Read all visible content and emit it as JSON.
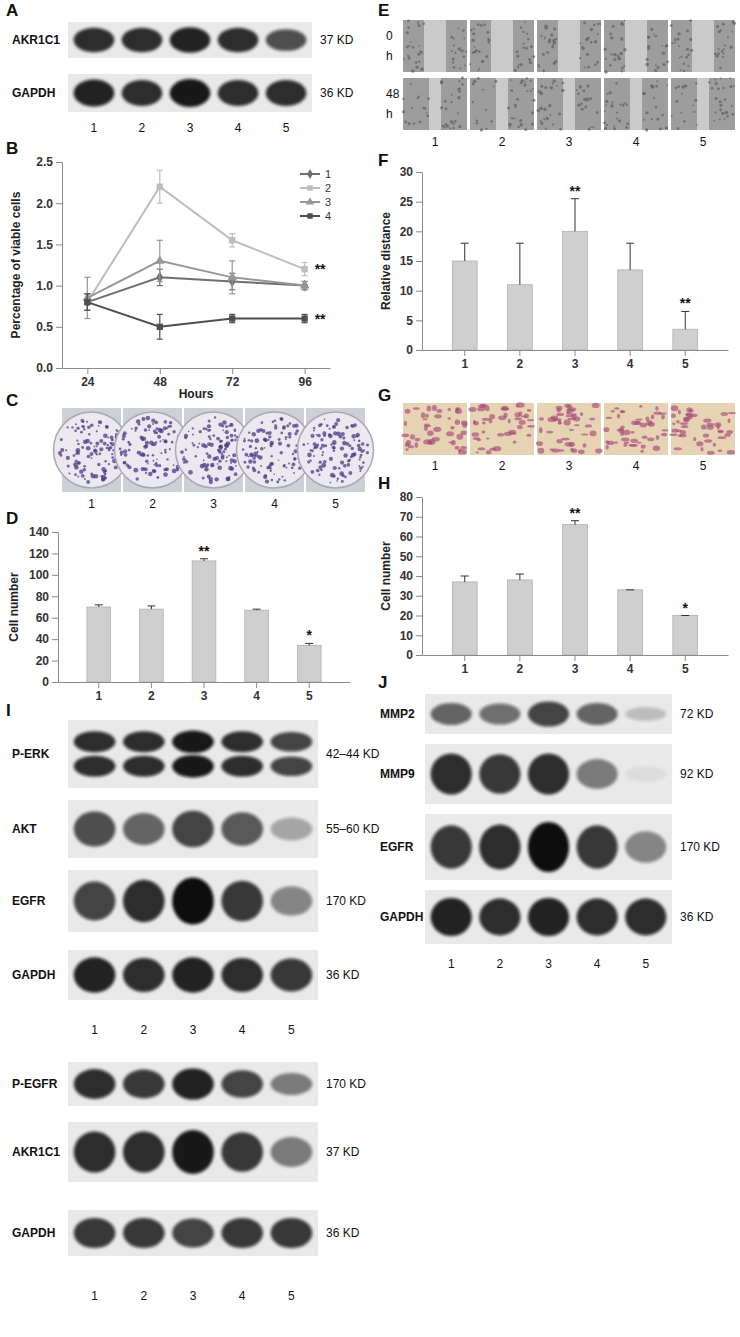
{
  "panels": [
    "A",
    "B",
    "C",
    "D",
    "E",
    "F",
    "G",
    "H",
    "I",
    "J"
  ],
  "lanes": [
    "1",
    "2",
    "3",
    "4",
    "5"
  ],
  "wound_rows": [
    [
      "0",
      "h"
    ],
    [
      "48",
      "h"
    ]
  ],
  "blots": [
    [
      [
        {
          "name": "AKR1C1",
          "size": "37 KD",
          "intensity": [
            0.85,
            0.85,
            0.9,
            0.85,
            0.7
          ]
        },
        {
          "name": "GAPDH",
          "size": "36 KD",
          "intensity": [
            0.9,
            0.85,
            0.95,
            0.85,
            0.85
          ]
        }
      ]
    ],
    [
      [
        {
          "name": "P-ERK",
          "size": "42–44 KD",
          "bands": 2,
          "intensity": [
            0.85,
            0.85,
            0.95,
            0.85,
            0.75
          ]
        },
        {
          "name": "AKT",
          "size": "55–60 KD",
          "intensity": [
            0.7,
            0.6,
            0.75,
            0.65,
            0.3
          ]
        },
        {
          "name": "EGFR",
          "size": "170 KD",
          "intensity": [
            0.75,
            0.85,
            1.0,
            0.8,
            0.45
          ]
        },
        {
          "name": "GAPDH",
          "size": "36 KD",
          "intensity": [
            0.9,
            0.85,
            0.9,
            0.85,
            0.8
          ]
        }
      ],
      [
        {
          "name": "P-EGFR",
          "size": "170 KD",
          "intensity": [
            0.85,
            0.8,
            0.9,
            0.75,
            0.5
          ]
        },
        {
          "name": "AKR1C1",
          "size": "37 KD",
          "intensity": [
            0.85,
            0.85,
            0.95,
            0.8,
            0.5
          ]
        },
        {
          "name": "GAPDH",
          "size": "36 KD",
          "intensity": [
            0.8,
            0.8,
            0.75,
            0.8,
            0.8
          ]
        }
      ]
    ],
    [
      [
        {
          "name": "MMP2",
          "size": "72 KD",
          "intensity": [
            0.6,
            0.55,
            0.75,
            0.6,
            0.2
          ]
        },
        {
          "name": "MMP9",
          "size": "92 KD",
          "intensity": [
            0.85,
            0.8,
            0.85,
            0.5,
            0.05
          ]
        },
        {
          "name": "EGFR",
          "size": "170 KD",
          "intensity": [
            0.8,
            0.85,
            1.0,
            0.8,
            0.45
          ]
        },
        {
          "name": "GAPDH",
          "size": "36 KD",
          "intensity": [
            0.9,
            0.85,
            0.9,
            0.85,
            0.85
          ]
        }
      ]
    ]
  ],
  "chart_data": [
    {
      "type": "line",
      "x_label": "Hours",
      "y_label": "Percentage of viable cells",
      "categories": [
        "24",
        "48",
        "72",
        "96"
      ],
      "ylim": [
        0,
        2.5
      ],
      "yticks": [
        {
          "value": 0,
          "label": "0.0"
        },
        0.5,
        {
          "value": 1,
          "label": "1.0"
        },
        1.5,
        {
          "value": 2,
          "label": "2.0"
        },
        2.5
      ],
      "grid": false,
      "legend": "upper right",
      "series": [
        {
          "name": "1",
          "color": "#6f6f6f",
          "marker": "diamond",
          "values": [
            0.8,
            1.1,
            1.05,
            1.0
          ],
          "errors": [
            0.1,
            0.1,
            0.1,
            0.05
          ]
        },
        {
          "name": "2",
          "color": "#bdbdbd",
          "marker": "square",
          "values": [
            0.8,
            2.2,
            1.55,
            1.2
          ],
          "errors": [
            0.1,
            0.2,
            0.08,
            0.08
          ]
        },
        {
          "name": "3",
          "color": "#979797",
          "marker": "triangle",
          "values": [
            0.85,
            1.3,
            1.1,
            1.0
          ],
          "errors": [
            0.25,
            0.25,
            0.2,
            0.05
          ]
        },
        {
          "name": "4",
          "color": "#4f4f4f",
          "marker": "square",
          "values": [
            0.8,
            0.5,
            0.6,
            0.6
          ],
          "errors": [
            0.1,
            0.15,
            0.05,
            0.05
          ]
        }
      ],
      "annotations": [
        {
          "text": "**",
          "x": "96",
          "y": 1.2
        },
        {
          "text": "**",
          "x": "96",
          "y": 0.6
        }
      ]
    },
    {
      "type": "bar",
      "y_label": "Cell number",
      "categories": [
        "1",
        "2",
        "3",
        "4",
        "5"
      ],
      "ylim": [
        0,
        140
      ],
      "yticks": [
        0,
        20,
        40,
        60,
        80,
        100,
        120,
        140
      ],
      "grid": false,
      "color": "#cfcfcf",
      "values": [
        70,
        68,
        113,
        67,
        34
      ],
      "errors": [
        2,
        3,
        2,
        1,
        2
      ],
      "annotations": [
        {
          "text": "**",
          "x": "3"
        },
        {
          "text": "*",
          "x": "5"
        }
      ]
    },
    {
      "type": "bar",
      "y_label": "Relative distance",
      "categories": [
        "1",
        "2",
        "3",
        "4",
        "5"
      ],
      "ylim": [
        0,
        30
      ],
      "yticks": [
        0,
        5,
        10,
        15,
        20,
        25,
        30
      ],
      "grid": false,
      "color": "#cfcfcf",
      "values": [
        15,
        11,
        20,
        13.5,
        3.5
      ],
      "errors": [
        3,
        7,
        5.5,
        4.5,
        3
      ],
      "annotations": [
        {
          "text": "**",
          "x": "3"
        },
        {
          "text": "**",
          "x": "5"
        }
      ]
    },
    {
      "type": "bar",
      "y_label": "Cell number",
      "categories": [
        "1",
        "2",
        "3",
        "4",
        "5"
      ],
      "ylim": [
        0,
        80
      ],
      "yticks": [
        0,
        10,
        20,
        30,
        40,
        50,
        60,
        70,
        80
      ],
      "grid": false,
      "color": "#cfcfcf",
      "values": [
        37,
        38,
        66,
        33,
        20
      ],
      "errors": [
        3,
        3,
        2,
        0,
        0
      ],
      "annotations": [
        {
          "text": "**",
          "x": "3"
        },
        {
          "text": "*",
          "x": "5"
        }
      ]
    }
  ]
}
